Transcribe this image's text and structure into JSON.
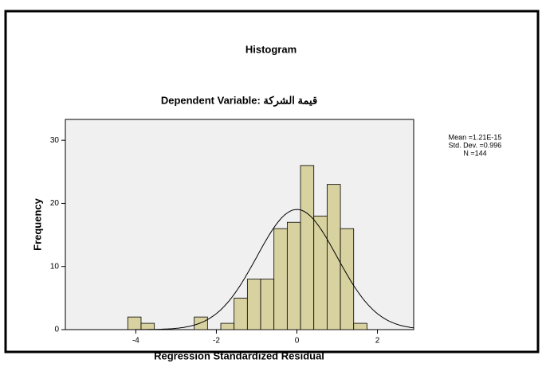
{
  "chart_data": {
    "type": "histogram",
    "title": "Histogram",
    "subtitle": "Dependent Variable: قيمة الشركة",
    "x_label": "Regression Standardized Residual",
    "y_label": "Frequency",
    "bins": [
      -4.2,
      -3.87,
      -3.54,
      -3.21,
      -2.88,
      -2.55,
      -2.22,
      -1.89,
      -1.56,
      -1.23,
      -0.9,
      -0.57,
      -0.24,
      0.09,
      0.42,
      0.75,
      1.08,
      1.41,
      1.74
    ],
    "values": [
      2,
      1,
      0,
      0,
      0,
      2,
      0,
      1,
      5,
      8,
      8,
      16,
      17,
      26,
      18,
      23,
      16,
      1
    ],
    "color": "#d8d2a0",
    "xlim": [
      -5.75,
      2.9
    ],
    "xticks": [
      -4,
      -2,
      0,
      2
    ],
    "ylim": [
      0,
      33.3
    ],
    "yticks": [
      0,
      10,
      20,
      30
    ],
    "normal": {
      "mean": {
        "value": 1.21e-15,
        "label": "Mean =1.21E-15"
      },
      "std": {
        "value": 0.996,
        "label": "Std. Dev. =0.996"
      },
      "n": {
        "value": 144,
        "label": "N =144"
      }
    }
  }
}
